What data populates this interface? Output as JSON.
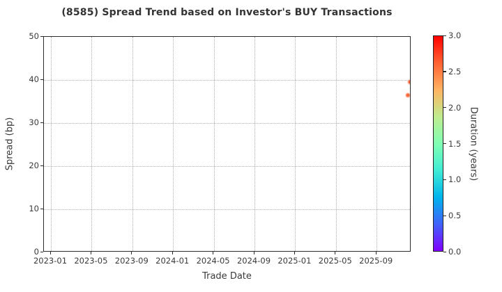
{
  "chart_data": {
    "type": "scatter",
    "title": "(8585)   Spread Trend based on Investor's BUY Transactions",
    "xlabel": "Trade Date",
    "ylabel": "Spread (bp)",
    "ylim": [
      0,
      50
    ],
    "y_ticks": [
      0,
      10,
      20,
      30,
      40,
      50
    ],
    "x_tick_labels": [
      "2023-01",
      "2023-05",
      "2023-09",
      "2024-01",
      "2024-05",
      "2024-09",
      "2025-01",
      "2025-05",
      "2025-09"
    ],
    "grid": "dotted",
    "legend_position": "none",
    "marker_color": "#f8693c",
    "points": [
      {
        "date": "2025-12-10",
        "spread_bp": 39.5,
        "duration_years": 2.5
      },
      {
        "date": "2025-12-04",
        "spread_bp": 36.4,
        "duration_years": 2.5
      }
    ],
    "colorbar": {
      "label": "Duration (years)",
      "range": [
        0.0,
        3.0
      ],
      "ticks": [
        "3.0",
        "2.5",
        "2.0",
        "1.5",
        "1.0",
        "0.5",
        "0.0"
      ],
      "colormap": "rainbow",
      "gradient_stops": [
        {
          "pos": 0.0,
          "color": "#8000ff"
        },
        {
          "pos": 0.125,
          "color": "#4062fa"
        },
        {
          "pos": 0.25,
          "color": "#00b4ec"
        },
        {
          "pos": 0.375,
          "color": "#40ecd4"
        },
        {
          "pos": 0.5,
          "color": "#80ffb4"
        },
        {
          "pos": 0.625,
          "color": "#bfec8e"
        },
        {
          "pos": 0.75,
          "color": "#ffb462"
        },
        {
          "pos": 0.875,
          "color": "#ff6232"
        },
        {
          "pos": 1.0,
          "color": "#ff0000"
        }
      ]
    }
  },
  "style": {
    "grid_color": "#b0b0b0",
    "spine_color": "#2a2a2a",
    "text_color": "#3a3a3a",
    "title_color": "#333333"
  }
}
